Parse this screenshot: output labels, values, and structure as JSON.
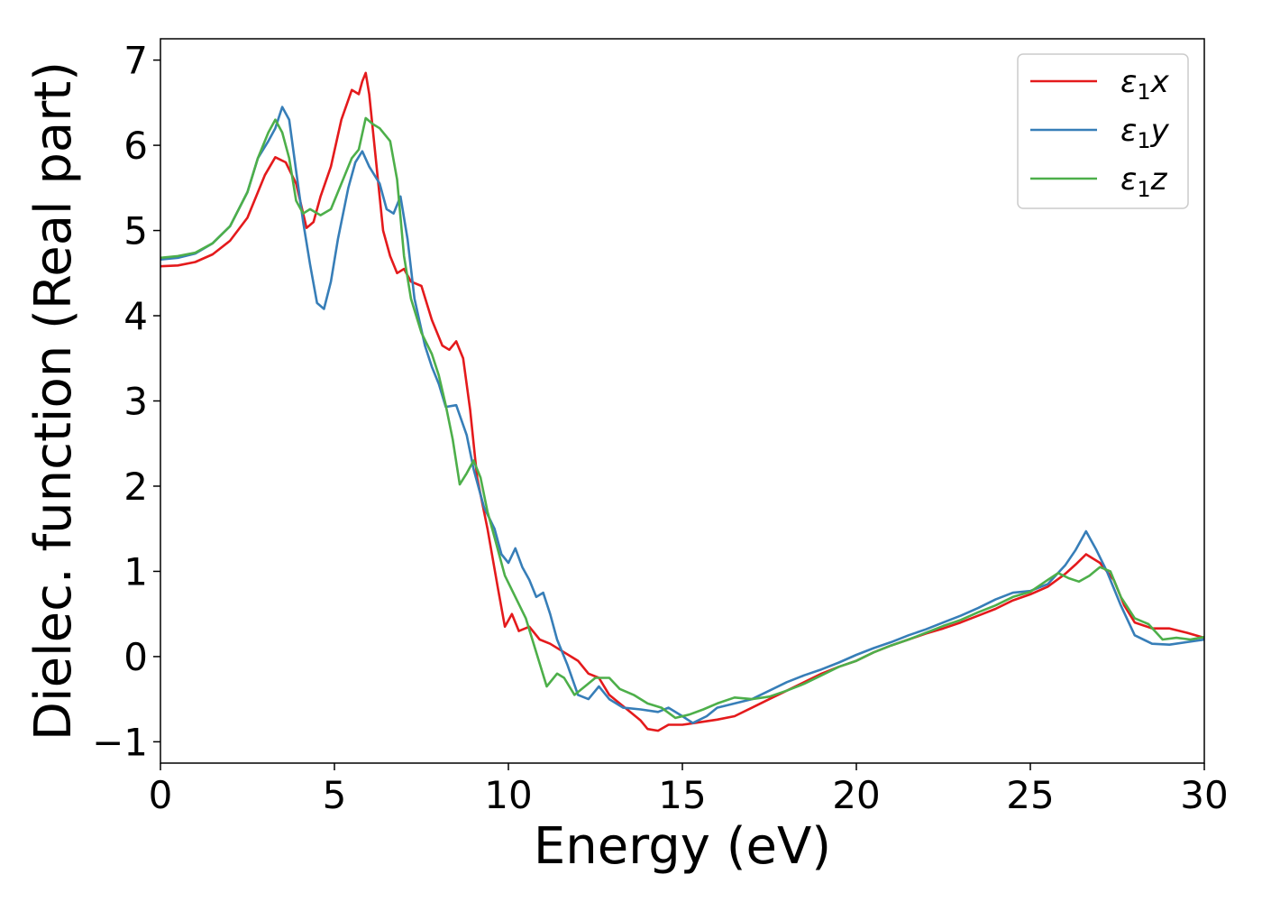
{
  "chart_data": {
    "type": "line",
    "xlabel": "Energy (eV)",
    "ylabel": "Dielec. function (Real part)",
    "xlim": [
      0,
      30
    ],
    "ylim": [
      -1.25,
      7.25
    ],
    "xticks": [
      0,
      5,
      10,
      15,
      20,
      25,
      30
    ],
    "yticks": [
      -1,
      0,
      1,
      2,
      3,
      4,
      5,
      6,
      7
    ],
    "xtick_labels": [
      "0",
      "5",
      "10",
      "15",
      "20",
      "25",
      "30"
    ],
    "ytick_labels": [
      "−1",
      "0",
      "1",
      "2",
      "3",
      "4",
      "5",
      "6",
      "7"
    ],
    "grid": false,
    "legend_position": "top-right",
    "series": [
      {
        "name": "ε1x",
        "symbol": "ε",
        "sub": "1",
        "suffix": "x",
        "color": "#e41a1c",
        "points": [
          [
            0,
            4.58
          ],
          [
            0.5,
            4.59
          ],
          [
            1,
            4.63
          ],
          [
            1.5,
            4.72
          ],
          [
            2,
            4.88
          ],
          [
            2.5,
            5.15
          ],
          [
            3,
            5.65
          ],
          [
            3.3,
            5.86
          ],
          [
            3.6,
            5.8
          ],
          [
            3.9,
            5.55
          ],
          [
            4.1,
            5.2
          ],
          [
            4.2,
            5.03
          ],
          [
            4.4,
            5.1
          ],
          [
            4.6,
            5.4
          ],
          [
            4.9,
            5.75
          ],
          [
            5.2,
            6.3
          ],
          [
            5.5,
            6.65
          ],
          [
            5.7,
            6.6
          ],
          [
            5.8,
            6.75
          ],
          [
            5.9,
            6.85
          ],
          [
            6.0,
            6.6
          ],
          [
            6.2,
            5.8
          ],
          [
            6.4,
            5.0
          ],
          [
            6.6,
            4.7
          ],
          [
            6.8,
            4.5
          ],
          [
            7.0,
            4.55
          ],
          [
            7.2,
            4.4
          ],
          [
            7.5,
            4.35
          ],
          [
            7.8,
            3.95
          ],
          [
            8.1,
            3.65
          ],
          [
            8.3,
            3.6
          ],
          [
            8.5,
            3.7
          ],
          [
            8.7,
            3.5
          ],
          [
            8.9,
            2.9
          ],
          [
            9.1,
            2.1
          ],
          [
            9.4,
            1.5
          ],
          [
            9.7,
            0.8
          ],
          [
            9.9,
            0.35
          ],
          [
            10.1,
            0.5
          ],
          [
            10.3,
            0.3
          ],
          [
            10.6,
            0.35
          ],
          [
            10.9,
            0.2
          ],
          [
            11.2,
            0.15
          ],
          [
            11.6,
            0.05
          ],
          [
            12.0,
            -0.05
          ],
          [
            12.3,
            -0.2
          ],
          [
            12.6,
            -0.25
          ],
          [
            12.9,
            -0.45
          ],
          [
            13.2,
            -0.55
          ],
          [
            13.5,
            -0.65
          ],
          [
            13.8,
            -0.75
          ],
          [
            14.0,
            -0.85
          ],
          [
            14.3,
            -0.87
          ],
          [
            14.6,
            -0.8
          ],
          [
            15.0,
            -0.8
          ],
          [
            15.5,
            -0.77
          ],
          [
            16.0,
            -0.74
          ],
          [
            16.5,
            -0.7
          ],
          [
            17.0,
            -0.6
          ],
          [
            17.5,
            -0.5
          ],
          [
            18.0,
            -0.4
          ],
          [
            18.5,
            -0.3
          ],
          [
            19.0,
            -0.2
          ],
          [
            19.5,
            -0.12
          ],
          [
            20.0,
            -0.05
          ],
          [
            20.5,
            0.05
          ],
          [
            21.0,
            0.13
          ],
          [
            21.5,
            0.2
          ],
          [
            22.0,
            0.27
          ],
          [
            22.5,
            0.33
          ],
          [
            23.0,
            0.4
          ],
          [
            23.5,
            0.48
          ],
          [
            24.0,
            0.56
          ],
          [
            24.5,
            0.66
          ],
          [
            25.0,
            0.73
          ],
          [
            25.5,
            0.82
          ],
          [
            26.0,
            0.97
          ],
          [
            26.3,
            1.08
          ],
          [
            26.6,
            1.2
          ],
          [
            27.0,
            1.1
          ],
          [
            27.4,
            0.9
          ],
          [
            27.7,
            0.6
          ],
          [
            28.0,
            0.4
          ],
          [
            28.5,
            0.33
          ],
          [
            29.0,
            0.33
          ],
          [
            29.5,
            0.28
          ],
          [
            30.0,
            0.22
          ]
        ]
      },
      {
        "name": "ε1y",
        "symbol": "ε",
        "sub": "1",
        "suffix": "y",
        "color": "#377eb8",
        "points": [
          [
            0,
            4.66
          ],
          [
            0.5,
            4.68
          ],
          [
            1,
            4.73
          ],
          [
            1.5,
            4.85
          ],
          [
            2,
            5.05
          ],
          [
            2.5,
            5.45
          ],
          [
            2.8,
            5.85
          ],
          [
            3.1,
            6.05
          ],
          [
            3.3,
            6.2
          ],
          [
            3.5,
            6.45
          ],
          [
            3.7,
            6.3
          ],
          [
            3.9,
            5.7
          ],
          [
            4.1,
            5.1
          ],
          [
            4.3,
            4.6
          ],
          [
            4.5,
            4.15
          ],
          [
            4.7,
            4.08
          ],
          [
            4.9,
            4.4
          ],
          [
            5.1,
            4.9
          ],
          [
            5.4,
            5.5
          ],
          [
            5.6,
            5.8
          ],
          [
            5.8,
            5.93
          ],
          [
            6.0,
            5.75
          ],
          [
            6.3,
            5.55
          ],
          [
            6.5,
            5.25
          ],
          [
            6.7,
            5.2
          ],
          [
            6.9,
            5.4
          ],
          [
            7.1,
            4.9
          ],
          [
            7.3,
            4.2
          ],
          [
            7.6,
            3.65
          ],
          [
            7.8,
            3.4
          ],
          [
            8.0,
            3.2
          ],
          [
            8.2,
            2.93
          ],
          [
            8.5,
            2.95
          ],
          [
            8.8,
            2.6
          ],
          [
            9.0,
            2.2
          ],
          [
            9.3,
            1.75
          ],
          [
            9.6,
            1.5
          ],
          [
            9.8,
            1.2
          ],
          [
            10.0,
            1.1
          ],
          [
            10.2,
            1.27
          ],
          [
            10.4,
            1.05
          ],
          [
            10.6,
            0.9
          ],
          [
            10.8,
            0.7
          ],
          [
            11.0,
            0.75
          ],
          [
            11.2,
            0.5
          ],
          [
            11.4,
            0.2
          ],
          [
            11.7,
            -0.1
          ],
          [
            12.0,
            -0.45
          ],
          [
            12.3,
            -0.5
          ],
          [
            12.6,
            -0.35
          ],
          [
            12.9,
            -0.5
          ],
          [
            13.3,
            -0.6
          ],
          [
            13.8,
            -0.62
          ],
          [
            14.3,
            -0.65
          ],
          [
            14.6,
            -0.6
          ],
          [
            15.0,
            -0.7
          ],
          [
            15.3,
            -0.78
          ],
          [
            15.7,
            -0.7
          ],
          [
            16.0,
            -0.6
          ],
          [
            16.5,
            -0.55
          ],
          [
            17.0,
            -0.5
          ],
          [
            17.5,
            -0.4
          ],
          [
            18.0,
            -0.3
          ],
          [
            18.5,
            -0.22
          ],
          [
            19.0,
            -0.15
          ],
          [
            19.5,
            -0.07
          ],
          [
            20.0,
            0.02
          ],
          [
            20.5,
            0.1
          ],
          [
            21.0,
            0.17
          ],
          [
            21.5,
            0.25
          ],
          [
            22.0,
            0.32
          ],
          [
            22.5,
            0.4
          ],
          [
            23.0,
            0.48
          ],
          [
            23.5,
            0.57
          ],
          [
            24.0,
            0.67
          ],
          [
            24.5,
            0.75
          ],
          [
            25.0,
            0.77
          ],
          [
            25.5,
            0.85
          ],
          [
            26.0,
            1.07
          ],
          [
            26.3,
            1.25
          ],
          [
            26.6,
            1.47
          ],
          [
            26.9,
            1.25
          ],
          [
            27.2,
            1.0
          ],
          [
            27.6,
            0.6
          ],
          [
            28.0,
            0.25
          ],
          [
            28.5,
            0.15
          ],
          [
            29.0,
            0.14
          ],
          [
            29.5,
            0.17
          ],
          [
            30.0,
            0.2
          ]
        ]
      },
      {
        "name": "ε1z",
        "symbol": "ε",
        "sub": "1",
        "suffix": "z",
        "color": "#4daf4a",
        "points": [
          [
            0,
            4.68
          ],
          [
            0.5,
            4.7
          ],
          [
            1,
            4.74
          ],
          [
            1.5,
            4.85
          ],
          [
            2,
            5.05
          ],
          [
            2.5,
            5.45
          ],
          [
            2.8,
            5.85
          ],
          [
            3.1,
            6.15
          ],
          [
            3.3,
            6.3
          ],
          [
            3.5,
            6.15
          ],
          [
            3.7,
            5.85
          ],
          [
            3.9,
            5.35
          ],
          [
            4.1,
            5.2
          ],
          [
            4.3,
            5.25
          ],
          [
            4.6,
            5.18
          ],
          [
            4.9,
            5.25
          ],
          [
            5.2,
            5.55
          ],
          [
            5.5,
            5.85
          ],
          [
            5.7,
            5.95
          ],
          [
            5.9,
            6.32
          ],
          [
            6.1,
            6.25
          ],
          [
            6.3,
            6.2
          ],
          [
            6.6,
            6.05
          ],
          [
            6.8,
            5.6
          ],
          [
            7.0,
            4.7
          ],
          [
            7.2,
            4.2
          ],
          [
            7.5,
            3.8
          ],
          [
            7.8,
            3.55
          ],
          [
            8.0,
            3.3
          ],
          [
            8.2,
            2.95
          ],
          [
            8.4,
            2.55
          ],
          [
            8.6,
            2.02
          ],
          [
            8.8,
            2.15
          ],
          [
            9.0,
            2.3
          ],
          [
            9.2,
            2.1
          ],
          [
            9.4,
            1.7
          ],
          [
            9.6,
            1.4
          ],
          [
            9.9,
            0.95
          ],
          [
            10.2,
            0.7
          ],
          [
            10.5,
            0.45
          ],
          [
            10.8,
            0.05
          ],
          [
            11.1,
            -0.35
          ],
          [
            11.4,
            -0.2
          ],
          [
            11.6,
            -0.25
          ],
          [
            11.9,
            -0.45
          ],
          [
            12.2,
            -0.35
          ],
          [
            12.5,
            -0.25
          ],
          [
            12.9,
            -0.25
          ],
          [
            13.2,
            -0.38
          ],
          [
            13.6,
            -0.45
          ],
          [
            14.0,
            -0.55
          ],
          [
            14.4,
            -0.6
          ],
          [
            14.8,
            -0.72
          ],
          [
            15.2,
            -0.68
          ],
          [
            15.6,
            -0.62
          ],
          [
            16.0,
            -0.55
          ],
          [
            16.5,
            -0.48
          ],
          [
            17.0,
            -0.5
          ],
          [
            17.5,
            -0.47
          ],
          [
            18.0,
            -0.4
          ],
          [
            18.5,
            -0.32
          ],
          [
            19.0,
            -0.22
          ],
          [
            19.5,
            -0.12
          ],
          [
            20.0,
            -0.05
          ],
          [
            20.5,
            0.05
          ],
          [
            21.0,
            0.13
          ],
          [
            21.5,
            0.2
          ],
          [
            22.0,
            0.28
          ],
          [
            22.5,
            0.36
          ],
          [
            23.0,
            0.43
          ],
          [
            23.5,
            0.52
          ],
          [
            24.0,
            0.6
          ],
          [
            24.5,
            0.7
          ],
          [
            25.0,
            0.76
          ],
          [
            25.5,
            0.9
          ],
          [
            25.8,
            0.98
          ],
          [
            26.1,
            0.92
          ],
          [
            26.4,
            0.88
          ],
          [
            26.7,
            0.95
          ],
          [
            27.0,
            1.05
          ],
          [
            27.3,
            1.0
          ],
          [
            27.6,
            0.7
          ],
          [
            28.0,
            0.45
          ],
          [
            28.4,
            0.38
          ],
          [
            28.8,
            0.2
          ],
          [
            29.2,
            0.22
          ],
          [
            29.6,
            0.2
          ],
          [
            30.0,
            0.23
          ]
        ]
      }
    ]
  }
}
